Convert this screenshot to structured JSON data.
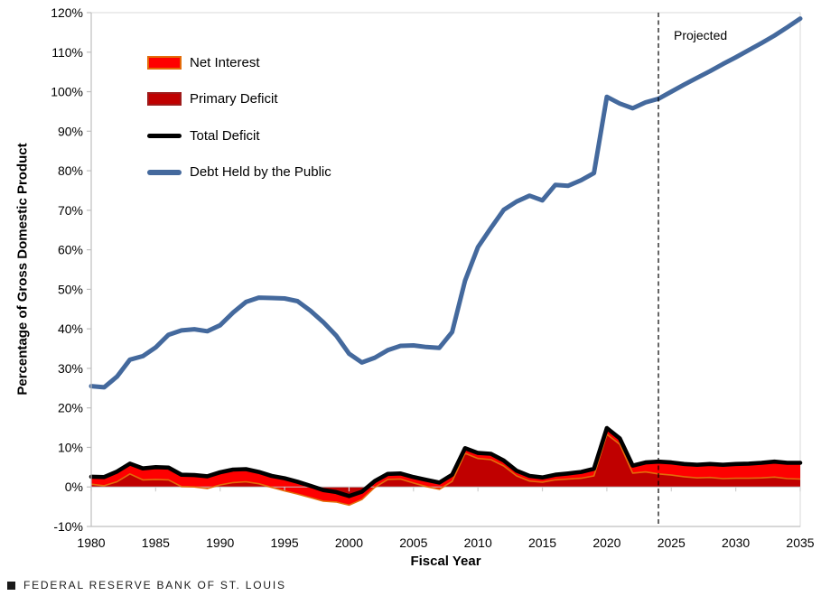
{
  "footer": {
    "text": "FEDERAL RESERVE BANK OF ST. LOUIS",
    "logo_icon": "black-square-icon"
  },
  "chart_data": {
    "type": "area",
    "title": "",
    "xlabel": "Fiscal Year",
    "ylabel": "Percentage of Gross Domestic Product",
    "ylim": [
      -10,
      120
    ],
    "ytick_step": 10,
    "ytick_labels": [
      "120%",
      "110%",
      "100%",
      "90%",
      "80%",
      "70%",
      "60%",
      "50%",
      "40%",
      "30%",
      "20%",
      "10%",
      "0%",
      "-10%"
    ],
    "xticks": [
      1980,
      1985,
      1990,
      1995,
      2000,
      2005,
      2010,
      2015,
      2020,
      2025,
      2030,
      2035
    ],
    "grid": "off",
    "legend_position": "top-left-inside",
    "projected_label": "Projected",
    "projected_year": 2024,
    "years": [
      1980,
      1981,
      1982,
      1983,
      1984,
      1985,
      1986,
      1987,
      1988,
      1989,
      1990,
      1991,
      1992,
      1993,
      1994,
      1995,
      1996,
      1997,
      1998,
      1999,
      2000,
      2001,
      2002,
      2003,
      2004,
      2005,
      2006,
      2007,
      2008,
      2009,
      2010,
      2011,
      2012,
      2013,
      2014,
      2015,
      2016,
      2017,
      2018,
      2019,
      2020,
      2021,
      2022,
      2023,
      2024,
      2025,
      2026,
      2027,
      2028,
      2029,
      2030,
      2031,
      2032,
      2033,
      2034,
      2035
    ],
    "series": [
      {
        "name": "Net Interest",
        "render": "area",
        "color": "#fe0000",
        "border_color": "#e36c0a",
        "values": [
          1.9,
          2.2,
          2.6,
          2.6,
          2.9,
          3.1,
          3.1,
          3.0,
          3.0,
          3.1,
          3.2,
          3.3,
          3.2,
          3.0,
          2.9,
          3.2,
          3.1,
          3.0,
          2.8,
          2.5,
          2.3,
          2.0,
          1.6,
          1.4,
          1.4,
          1.5,
          1.7,
          1.7,
          1.7,
          1.3,
          1.4,
          1.5,
          1.4,
          1.3,
          1.3,
          1.2,
          1.3,
          1.4,
          1.6,
          1.8,
          1.6,
          1.5,
          1.9,
          2.4,
          3.1,
          3.2,
          3.2,
          3.3,
          3.4,
          3.5,
          3.6,
          3.7,
          3.8,
          3.9,
          4.0,
          4.1
        ]
      },
      {
        "name": "Primary Deficit",
        "render": "area",
        "color": "#c00000",
        "values": [
          0.7,
          0.3,
          1.3,
          3.3,
          1.8,
          1.9,
          1.8,
          0.1,
          0.0,
          -0.4,
          0.5,
          1.1,
          1.3,
          0.8,
          -0.1,
          -1.0,
          -1.8,
          -2.7,
          -3.6,
          -3.8,
          -4.6,
          -3.2,
          -0.1,
          1.9,
          2.0,
          1.0,
          0.1,
          -0.6,
          1.4,
          8.5,
          7.2,
          6.9,
          5.3,
          2.8,
          1.5,
          1.2,
          1.8,
          2.0,
          2.2,
          2.8,
          13.3,
          10.8,
          3.5,
          3.8,
          3.3,
          3.0,
          2.6,
          2.3,
          2.4,
          2.1,
          2.2,
          2.2,
          2.3,
          2.5,
          2.1,
          2.0
        ]
      },
      {
        "name": "Total Deficit",
        "render": "line",
        "color": "#000000",
        "values": [
          2.6,
          2.5,
          3.9,
          5.9,
          4.7,
          5.0,
          4.9,
          3.1,
          3.0,
          2.7,
          3.7,
          4.4,
          4.5,
          3.8,
          2.8,
          2.2,
          1.3,
          0.3,
          -0.8,
          -1.3,
          -2.3,
          -1.2,
          1.5,
          3.3,
          3.4,
          2.5,
          1.8,
          1.1,
          3.1,
          9.8,
          8.6,
          8.4,
          6.7,
          4.1,
          2.8,
          2.4,
          3.1,
          3.4,
          3.8,
          4.6,
          14.9,
          12.3,
          5.4,
          6.2,
          6.4,
          6.2,
          5.8,
          5.6,
          5.8,
          5.6,
          5.8,
          5.9,
          6.1,
          6.4,
          6.1,
          6.1
        ]
      },
      {
        "name": "Debt Held by the Public",
        "render": "line",
        "color": "#44699d",
        "values": [
          25.5,
          25.2,
          27.9,
          32.2,
          33.1,
          35.3,
          38.5,
          39.6,
          39.9,
          39.4,
          40.9,
          44.1,
          46.8,
          47.9,
          47.8,
          47.7,
          47.0,
          44.6,
          41.7,
          38.3,
          33.7,
          31.5,
          32.7,
          34.6,
          35.7,
          35.8,
          35.4,
          35.2,
          39.2,
          52.2,
          60.7,
          65.5,
          70.1,
          72.2,
          73.7,
          72.5,
          76.4,
          76.2,
          77.6,
          79.4,
          98.7,
          97.0,
          95.8,
          97.3,
          98.2,
          100.0,
          101.8,
          103.5,
          105.2,
          107.0,
          108.7,
          110.5,
          112.3,
          114.2,
          116.3,
          118.5
        ]
      }
    ],
    "axis_colors": {
      "axis_line": "#bfbfbf",
      "plot_border": "#d9d9d9",
      "zero_line": "#bfbfbf",
      "tick": "#cfcfcf"
    }
  }
}
